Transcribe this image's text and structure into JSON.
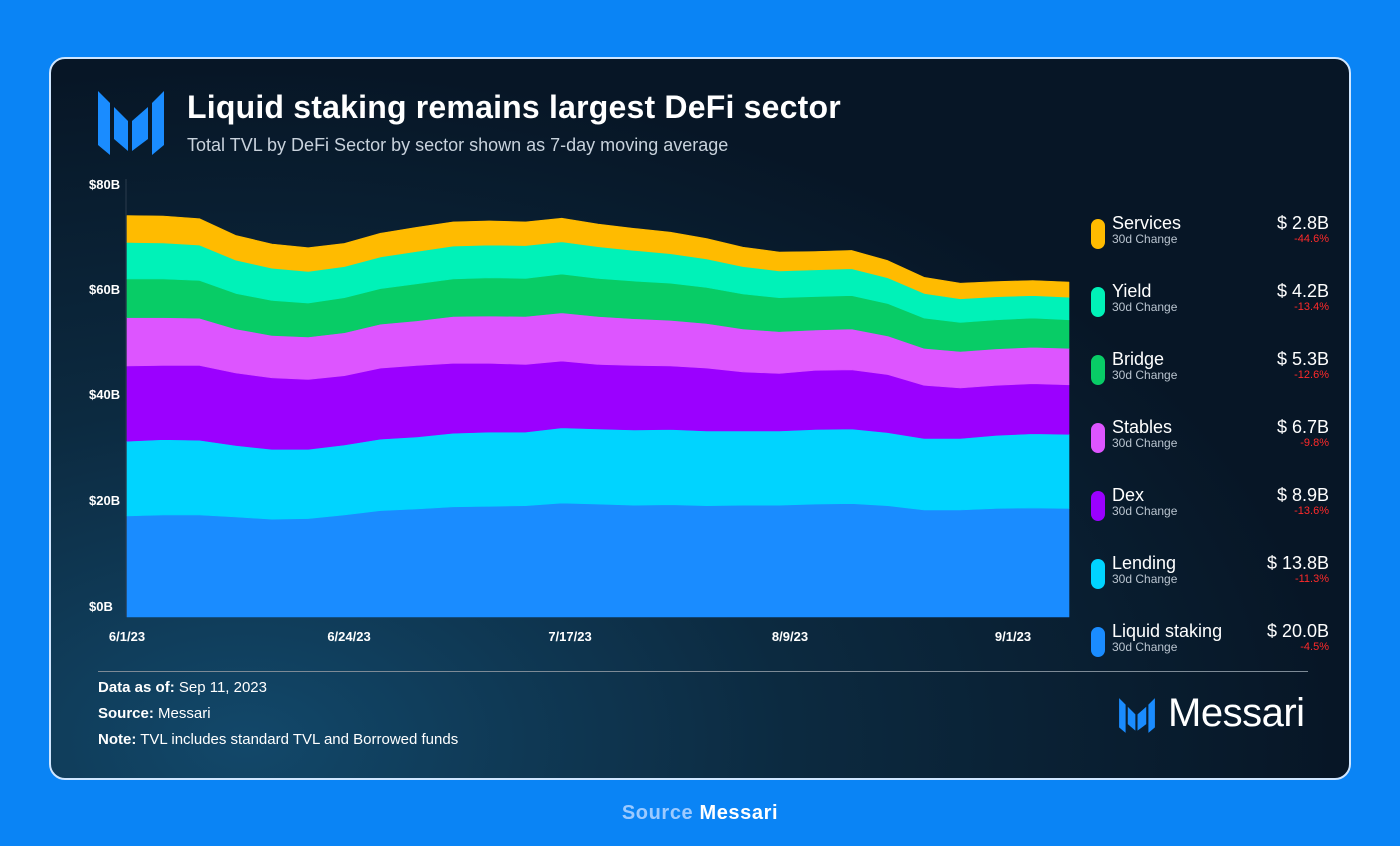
{
  "header": {
    "title": "Liquid staking remains largest DeFi sector",
    "subtitle": "Total TVL by DeFi Sector by sector shown as 7-day moving average"
  },
  "chart_data": {
    "type": "area",
    "stacked": true,
    "title": "Liquid staking remains largest DeFi sector",
    "subtitle": "Total TVL by DeFi Sector by sector shown as 7-day moving average",
    "xlabel": "",
    "ylabel": "",
    "ylim": [
      0,
      80
    ],
    "y_unit": "$B",
    "y_ticks": [
      "$0B",
      "$20B",
      "$40B",
      "$60B",
      "$80B"
    ],
    "x_ticks": [
      "6/1/23",
      "6/24/23",
      "7/17/23",
      "8/9/23",
      "9/1/23"
    ],
    "x": [
      "6/1/23",
      "6/5/23",
      "6/9/23",
      "6/13/23",
      "6/17/23",
      "6/21/23",
      "6/24/23",
      "6/28/23",
      "7/2/23",
      "7/6/23",
      "7/10/23",
      "7/14/23",
      "7/17/23",
      "7/21/23",
      "7/25/23",
      "7/29/23",
      "8/2/23",
      "8/6/23",
      "8/9/23",
      "8/13/23",
      "8/17/23",
      "8/21/23",
      "8/25/23",
      "8/29/23",
      "9/1/23",
      "9/5/23",
      "9/10/23"
    ],
    "series": [
      {
        "name": "Liquid staking",
        "color": "#1a8cff",
        "values": [
          18.8,
          19.0,
          19.0,
          18.6,
          18.2,
          18.3,
          19.0,
          19.8,
          20.1,
          20.5,
          20.6,
          20.7,
          21.2,
          21.0,
          20.8,
          20.9,
          20.7,
          20.8,
          20.8,
          21.0,
          21.1,
          20.7,
          19.9,
          19.9,
          20.2,
          20.3,
          20.2
        ]
      },
      {
        "name": "Lending",
        "color": "#00d4ff",
        "values": [
          13.9,
          14.0,
          13.9,
          13.3,
          13.0,
          12.9,
          13.0,
          13.3,
          13.4,
          13.7,
          13.8,
          13.7,
          14.0,
          14.0,
          14.0,
          14.0,
          13.9,
          13.8,
          13.8,
          13.9,
          13.9,
          13.6,
          13.3,
          13.3,
          13.6,
          13.8,
          13.8
        ]
      },
      {
        "name": "Dex",
        "color": "#9b00ff",
        "values": [
          14.0,
          13.8,
          13.9,
          13.5,
          13.3,
          13.0,
          12.9,
          13.2,
          13.3,
          13.0,
          12.8,
          12.6,
          12.4,
          12.0,
          12.0,
          11.8,
          11.7,
          11.0,
          10.7,
          11.0,
          11.0,
          10.8,
          9.9,
          9.4,
          9.3,
          9.3,
          9.2
        ]
      },
      {
        "name": "Stables",
        "color": "#dd55ff",
        "values": [
          9.0,
          8.9,
          8.8,
          8.2,
          7.9,
          7.9,
          8.0,
          8.2,
          8.3,
          8.7,
          8.8,
          8.9,
          9.0,
          8.9,
          8.7,
          8.5,
          8.3,
          8.0,
          7.8,
          7.5,
          7.6,
          7.2,
          6.9,
          6.8,
          6.8,
          6.8,
          6.8
        ]
      },
      {
        "name": "Bridge",
        "color": "#08cc66",
        "values": [
          7.2,
          7.2,
          7.0,
          6.6,
          6.5,
          6.3,
          6.5,
          6.6,
          6.9,
          7.0,
          7.1,
          7.1,
          7.2,
          7.1,
          7.0,
          6.9,
          6.7,
          6.5,
          6.3,
          6.2,
          6.2,
          6.0,
          5.6,
          5.4,
          5.4,
          5.4,
          5.3
        ]
      },
      {
        "name": "Yield",
        "color": "#00f2b8",
        "values": [
          6.8,
          6.7,
          6.6,
          6.2,
          6.0,
          5.9,
          5.8,
          5.9,
          6.0,
          6.1,
          6.1,
          6.1,
          6.0,
          5.9,
          5.7,
          5.5,
          5.3,
          5.1,
          5.0,
          5.0,
          5.0,
          4.8,
          4.6,
          4.4,
          4.3,
          4.2,
          4.2
        ]
      },
      {
        "name": "Services",
        "color": "#ffbb00",
        "values": [
          5.0,
          5.0,
          4.9,
          4.6,
          4.5,
          4.4,
          4.3,
          4.4,
          4.5,
          4.5,
          4.5,
          4.4,
          4.4,
          4.2,
          4.1,
          4.0,
          3.8,
          3.6,
          3.5,
          3.4,
          3.4,
          3.2,
          3.0,
          2.9,
          2.8,
          2.8,
          2.8
        ]
      }
    ],
    "legend": "right"
  },
  "legend": [
    {
      "name": "Services",
      "value": "$ 2.8B",
      "sub": "30d Change",
      "change": "-44.6%",
      "color": "#ffbb00"
    },
    {
      "name": "Yield",
      "value": "$ 4.2B",
      "sub": "30d Change",
      "change": "-13.4%",
      "color": "#00f2b8"
    },
    {
      "name": "Bridge",
      "value": "$ 5.3B",
      "sub": "30d Change",
      "change": "-12.6%",
      "color": "#08cc66"
    },
    {
      "name": "Stables",
      "value": "$ 6.7B",
      "sub": "30d Change",
      "change": "-9.8%",
      "color": "#dd55ff"
    },
    {
      "name": "Dex",
      "value": "$ 8.9B",
      "sub": "30d Change",
      "change": "-13.6%",
      "color": "#9b00ff"
    },
    {
      "name": "Lending",
      "value": "$ 13.8B",
      "sub": "30d Change",
      "change": "-11.3%",
      "color": "#00d4ff"
    },
    {
      "name": "Liquid staking",
      "value": "$ 20.0B",
      "sub": "30d Change",
      "change": "-4.5%",
      "color": "#1a8cff"
    }
  ],
  "footer": {
    "data_as_of_label": "Data as of:",
    "data_as_of_value": "Sep 11, 2023",
    "source_label": "Source:",
    "source_value": "Messari",
    "note_label": "Note:",
    "note_value": "TVL includes standard TVL and Borrowed funds",
    "brand": "Messari"
  },
  "caption": {
    "label": "Source",
    "value": "Messari"
  }
}
